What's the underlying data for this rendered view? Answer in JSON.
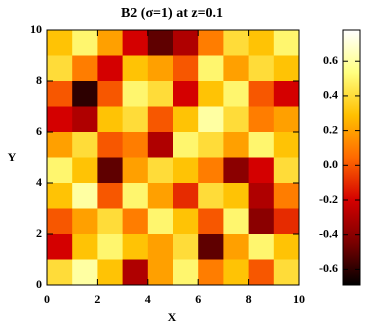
{
  "chart_data": {
    "type": "heatmap",
    "title": "B2 (σ=1) at z=0.1",
    "x_label": "X",
    "y_label": "Y",
    "x": [
      0.5,
      1.5,
      2.5,
      3.5,
      4.5,
      5.5,
      6.5,
      7.5,
      8.5,
      9.5
    ],
    "y": [
      9.5,
      8.5,
      7.5,
      6.5,
      5.5,
      4.5,
      3.5,
      2.5,
      1.5,
      0.5
    ],
    "z": [
      [
        0.3,
        0.5,
        0.2,
        -0.2,
        -0.5,
        -0.3,
        0.1,
        0.4,
        0.3,
        0.5
      ],
      [
        0.4,
        0.1,
        -0.2,
        0.3,
        0.2,
        0.0,
        0.5,
        0.2,
        0.4,
        0.3
      ],
      [
        0.0,
        -0.6,
        0.0,
        0.5,
        0.4,
        -0.2,
        0.3,
        0.5,
        0.0,
        -0.2
      ],
      [
        -0.2,
        -0.3,
        0.3,
        0.4,
        0.0,
        0.3,
        0.6,
        0.4,
        0.1,
        0.2
      ],
      [
        0.2,
        0.4,
        0.0,
        0.1,
        -0.3,
        0.5,
        0.4,
        0.2,
        0.5,
        0.3
      ],
      [
        0.5,
        0.3,
        -0.5,
        0.2,
        0.4,
        0.3,
        0.1,
        -0.4,
        -0.2,
        0.4
      ],
      [
        0.3,
        0.6,
        0.0,
        0.5,
        0.2,
        -0.1,
        0.4,
        0.3,
        -0.3,
        0.1
      ],
      [
        0.0,
        0.2,
        0.4,
        0.1,
        0.5,
        0.3,
        0.0,
        0.5,
        -0.4,
        -0.1
      ],
      [
        -0.2,
        0.3,
        0.5,
        0.3,
        0.2,
        0.4,
        -0.5,
        0.2,
        0.5,
        0.3
      ],
      [
        0.4,
        0.6,
        0.3,
        -0.3,
        0.2,
        0.5,
        0.1,
        0.3,
        0.0,
        0.4
      ]
    ],
    "xlim": [
      0,
      10
    ],
    "ylim": [
      0,
      10
    ],
    "xticks": [
      0,
      2,
      4,
      6,
      8,
      10
    ],
    "yticks": [
      0,
      2,
      4,
      6,
      8,
      10
    ],
    "clim": [
      -0.69,
      0.78
    ],
    "cticks": [
      -0.6,
      -0.4,
      -0.2,
      {
        "value": 0,
        "label": "0.0"
      },
      0.2,
      0.4,
      0.6
    ],
    "colorscale": [
      "#000000",
      "#7a0000",
      "#d40000",
      "#ff6a00",
      "#ffc000",
      "#ffff80",
      "#ffffff"
    ]
  }
}
